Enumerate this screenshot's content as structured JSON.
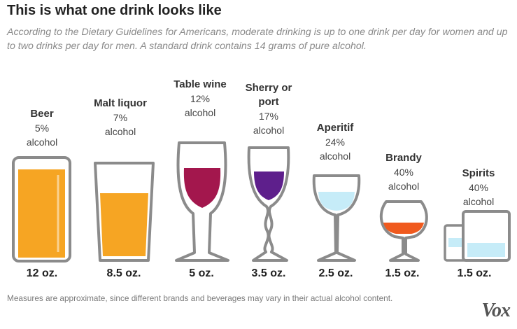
{
  "header": {
    "title": "This is what one drink looks like",
    "subtitle": "According to the Dietary Guidelines for Americans, moderate drinking is up to one drink per day for women and up to two drinks per day for men. A standard drink contains 14 grams of pure alcohol."
  },
  "drinks": [
    {
      "name": "Beer",
      "abv": "5%",
      "word": "alcohol",
      "size": "12 oz.",
      "fill_color": "#f6a523",
      "icon": "beer-can-icon"
    },
    {
      "name": "Malt liquor",
      "abv": "7%",
      "word": "alcohol",
      "size": "8.5 oz.",
      "fill_color": "#f6a523",
      "icon": "pint-glass-icon"
    },
    {
      "name": "Table wine",
      "abv": "12%",
      "word": "alcohol",
      "size": "5 oz.",
      "fill_color": "#a3174d",
      "icon": "wine-glass-icon"
    },
    {
      "name": "Sherry or port",
      "abv": "17%",
      "word": "alcohol",
      "size": "3.5 oz.",
      "fill_color": "#5e1f8c",
      "icon": "sherry-glass-icon"
    },
    {
      "name": "Aperitif",
      "abv": "24%",
      "word": "alcohol",
      "size": "2.5 oz.",
      "fill_color": "#c6ecf8",
      "icon": "aperitif-glass-icon"
    },
    {
      "name": "Brandy",
      "abv": "40%",
      "word": "alcohol",
      "size": "1.5 oz.",
      "fill_color": "#f05a1e",
      "icon": "snifter-glass-icon"
    },
    {
      "name": "Spirits",
      "abv": "40%",
      "word": "alcohol",
      "size": "1.5 oz.",
      "fill_color": "#c6ecf8",
      "icon": "shot-and-rocks-glass-icon"
    }
  ],
  "footnote": "Measures are approximate, since different brands and beverages may vary in their actual alcohol content.",
  "brand": {
    "logo_text": "Vox"
  },
  "colors": {
    "outline": "#8b8b8b",
    "background": "#ffffff"
  }
}
